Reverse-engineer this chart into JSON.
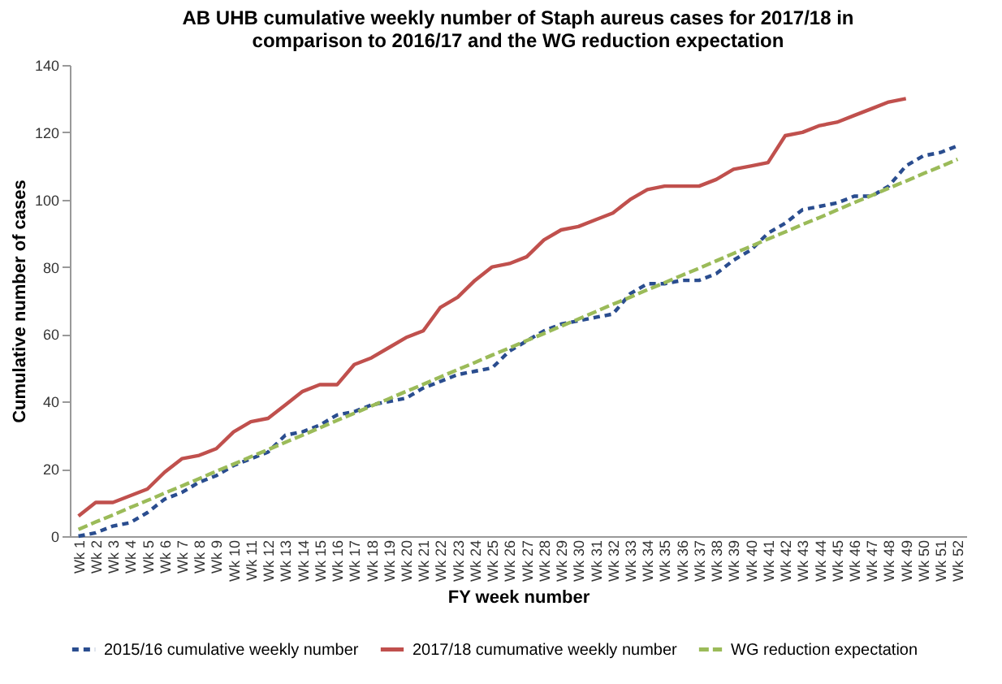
{
  "chart_data": {
    "type": "line",
    "title": "AB UHB cumulative  weekly number of Staph aureus cases for 2017/18 in\ncomparison to 2016/17 and the WG reduction expectation",
    "xlabel": "FY week number",
    "ylabel": "Cumulative number of cases",
    "categories": [
      "Wk 1",
      "Wk 2",
      "Wk 3",
      "Wk 4",
      "Wk 5",
      "Wk 6",
      "Wk 7",
      "Wk 8",
      "Wk 9",
      "Wk 10",
      "Wk 11",
      "Wk 12",
      "Wk 13",
      "Wk 14",
      "Wk 15",
      "Wk 16",
      "Wk 17",
      "Wk 18",
      "Wk 19",
      "Wk 20",
      "Wk 21",
      "Wk 22",
      "Wk 23",
      "Wk 24",
      "Wk 25",
      "Wk 26",
      "Wk 27",
      "Wk 28",
      "Wk 29",
      "Wk 30",
      "Wk 31",
      "Wk 32",
      "Wk 33",
      "Wk 34",
      "Wk 35",
      "Wk 36",
      "Wk 37",
      "Wk 38",
      "Wk 39",
      "Wk 40",
      "Wk 41",
      "Wk 42",
      "Wk 43",
      "Wk 44",
      "Wk 45",
      "Wk 46",
      "Wk 47",
      "Wk 48",
      "Wk 49",
      "Wk 50",
      "Wk 51",
      "Wk 52"
    ],
    "series": [
      {
        "name": "2015/16 cumulative weekly number",
        "color": "#2a4d8f",
        "line_style": "dotted",
        "values": [
          0,
          1,
          3,
          4,
          7,
          11,
          13,
          16,
          18,
          21,
          23,
          25,
          30,
          31,
          33,
          36,
          37,
          39,
          40,
          41,
          44,
          46,
          48,
          49,
          50,
          55,
          58,
          61,
          63,
          64,
          65,
          66,
          72,
          75,
          75,
          76,
          76,
          78,
          82,
          85,
          90,
          93,
          97,
          98,
          99,
          101,
          101,
          104,
          110,
          113,
          114,
          116
        ]
      },
      {
        "name": "2017/18 cumumative weekly number",
        "color": "#c0504d",
        "line_style": "solid",
        "values": [
          6,
          10,
          10,
          12,
          14,
          19,
          23,
          24,
          26,
          31,
          34,
          35,
          39,
          43,
          45,
          45,
          51,
          53,
          56,
          59,
          61,
          68,
          71,
          76,
          80,
          81,
          83,
          88,
          91,
          92,
          94,
          96,
          100,
          103,
          104,
          104,
          104,
          106,
          109,
          110,
          111,
          119,
          120,
          122,
          123,
          125,
          127,
          129,
          130,
          null,
          null,
          null
        ]
      },
      {
        "name": "WG reduction expectation",
        "color": "#9bbb59",
        "line_style": "dashed",
        "values": [
          2,
          4.2,
          6.3,
          8.5,
          10.6,
          12.8,
          14.9,
          17.1,
          19.3,
          21.4,
          23.6,
          25.7,
          27.9,
          30.0,
          32.2,
          34.4,
          36.5,
          38.7,
          40.8,
          43.0,
          45.1,
          47.3,
          49.5,
          51.6,
          53.8,
          55.9,
          58.1,
          60.2,
          62.4,
          64.5,
          66.7,
          68.9,
          71.0,
          73.2,
          75.3,
          77.5,
          79.6,
          81.8,
          84.0,
          86.1,
          88.3,
          90.4,
          92.6,
          94.7,
          96.9,
          99.1,
          101.2,
          103.4,
          105.5,
          107.7,
          109.8,
          112
        ]
      }
    ],
    "ylim": [
      0,
      140
    ],
    "yticks": [
      0,
      20,
      40,
      60,
      80,
      100,
      120,
      140
    ],
    "grid": false,
    "legend": "bottom",
    "marker": "none"
  }
}
